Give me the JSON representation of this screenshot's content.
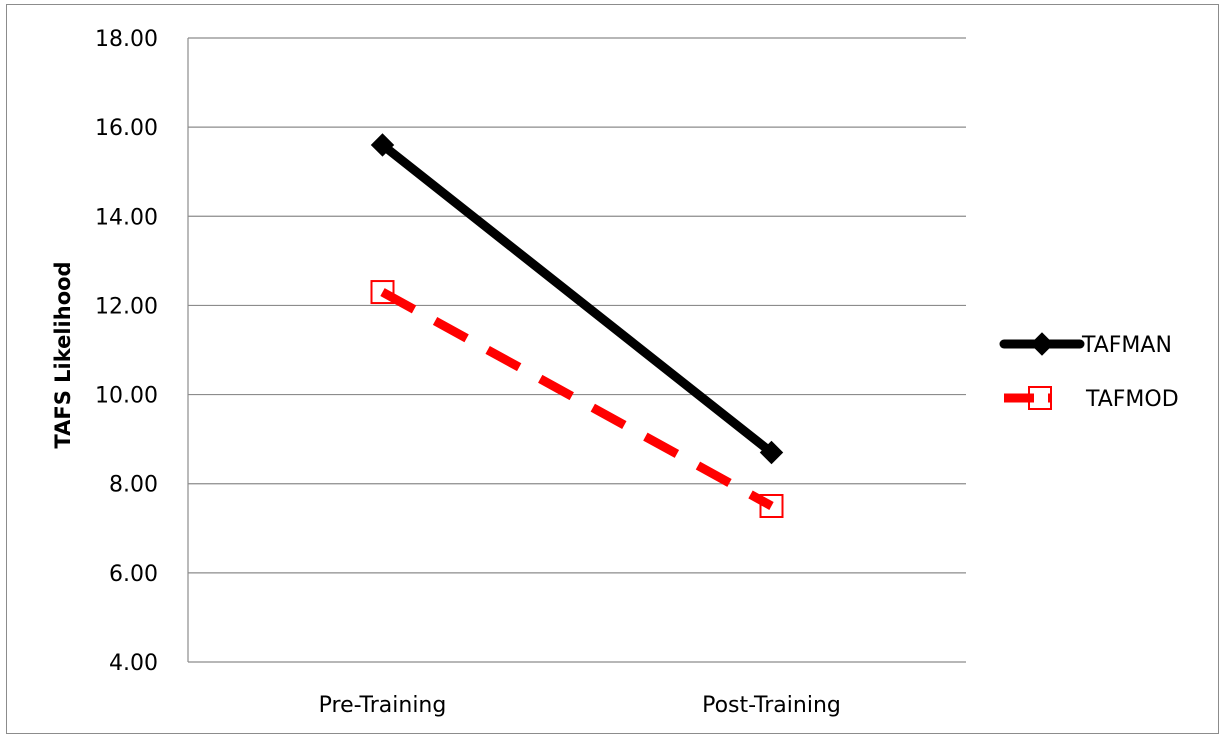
{
  "chart_data": {
    "type": "line",
    "title": "",
    "xlabel": "",
    "ylabel": "TAFS Likelihood",
    "categories": [
      "Pre-Training",
      "Post-Training"
    ],
    "ylim": [
      4,
      18
    ],
    "y_ticks": [
      "4.00",
      "6.00",
      "8.00",
      "10.00",
      "12.00",
      "14.00",
      "16.00",
      "18.00"
    ],
    "grid": "horizontal",
    "legend_position": "right",
    "series": [
      {
        "name": "TAFMAN",
        "values": [
          15.6,
          8.7
        ],
        "color": "#000000",
        "line_style": "solid",
        "marker": "diamond-filled"
      },
      {
        "name": "TAFMOD",
        "values": [
          12.3,
          7.5
        ],
        "color": "#ff0000",
        "line_style": "dashed",
        "marker": "square-open"
      }
    ]
  }
}
